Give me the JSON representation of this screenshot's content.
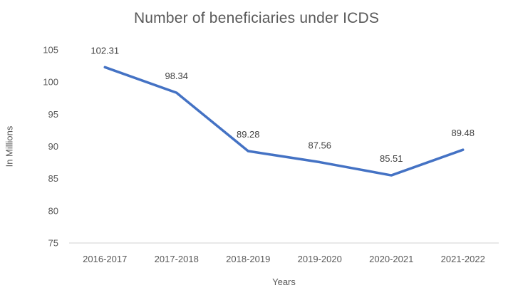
{
  "chart_data": {
    "type": "line",
    "title": "Number of beneficiaries under ICDS",
    "xlabel": "Years",
    "ylabel": "In Millions",
    "categories": [
      "2016-2017",
      "2017-2018",
      "2018-2019",
      "2019-2020",
      "2020-2021",
      "2021-2022"
    ],
    "values": [
      102.31,
      98.34,
      89.28,
      87.56,
      85.51,
      89.48
    ],
    "data_labels": [
      "102.31",
      "98.34",
      "89.28",
      "87.56",
      "85.51",
      "89.48"
    ],
    "ylim": [
      75,
      105
    ],
    "yticks": [
      75,
      80,
      85,
      90,
      95,
      100,
      105
    ],
    "grid": false,
    "legend": "none",
    "colors": {
      "line": "#4472C4",
      "axis_line": "#D9D9D9",
      "axis_text": "#595959",
      "data_label_text": "#404040",
      "title_text": "#595959"
    }
  }
}
